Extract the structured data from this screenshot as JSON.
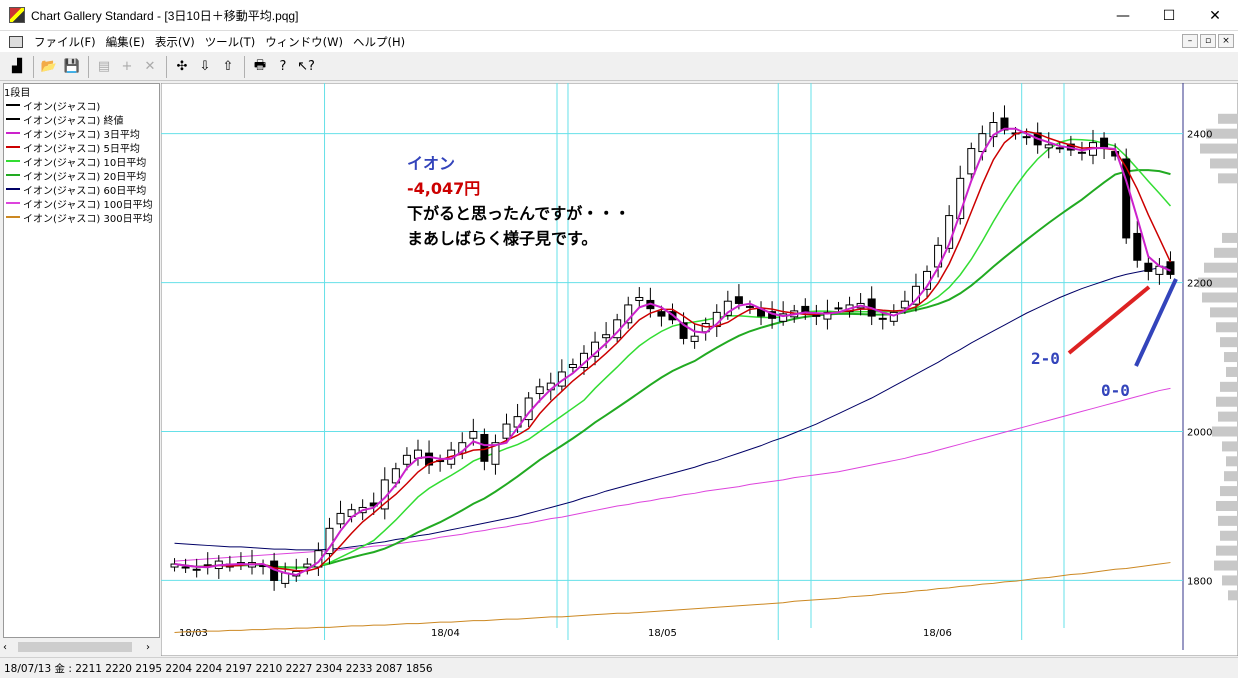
{
  "window": {
    "title": "Chart Gallery Standard - [3日10日＋移動平均.pqg]",
    "minimize": "—",
    "maximize": "☐",
    "close": "✕"
  },
  "menu": [
    "ファイル(F)",
    "編集(E)",
    "表示(V)",
    "ツール(T)",
    "ウィンドウ(W)",
    "ヘルプ(H)"
  ],
  "mdi_controls": [
    "–",
    "▫",
    "×"
  ],
  "toolbar": {
    "buttons": [
      {
        "name": "chart-type-icon",
        "glyph": "▟",
        "enabled": true
      },
      {
        "name": "open-folder-icon",
        "glyph": "📂",
        "enabled": true
      },
      {
        "name": "save-icon",
        "glyph": "💾",
        "enabled": true
      },
      {
        "name": "properties-icon",
        "glyph": "▤",
        "enabled": false
      },
      {
        "name": "add-icon",
        "glyph": "+",
        "enabled": false
      },
      {
        "name": "delete-icon",
        "glyph": "✕",
        "enabled": false
      },
      {
        "name": "crosshair-icon",
        "glyph": "✣",
        "enabled": true
      },
      {
        "name": "arrow-down-icon",
        "glyph": "⇩",
        "enabled": true
      },
      {
        "name": "arrow-up-icon",
        "glyph": "⇧",
        "enabled": true
      },
      {
        "name": "print-icon",
        "glyph": "🖶",
        "enabled": true
      },
      {
        "name": "help-icon",
        "glyph": "?",
        "enabled": true
      },
      {
        "name": "context-help-icon",
        "glyph": "↖?",
        "enabled": true
      }
    ]
  },
  "legend": {
    "header": "1段目",
    "items": [
      {
        "label": "イオン(ジャスコ)",
        "color": "#000000"
      },
      {
        "label": "イオン(ジャスコ) 終値",
        "color": "#000000"
      },
      {
        "label": "イオン(ジャスコ) 3日平均",
        "color": "#cc22cc"
      },
      {
        "label": "イオン(ジャスコ) 5日平均",
        "color": "#cc0000"
      },
      {
        "label": "イオン(ジャスコ) 10日平均",
        "color": "#33dd33"
      },
      {
        "label": "イオン(ジャスコ) 20日平均",
        "color": "#22aa22"
      },
      {
        "label": "イオン(ジャスコ) 60日平均",
        "color": "#000066"
      },
      {
        "label": "イオン(ジャスコ) 100日平均",
        "color": "#dd44dd"
      },
      {
        "label": "イオン(ジャスコ) 300日平均",
        "color": "#cc8822"
      }
    ]
  },
  "annotations": {
    "name": "イオン",
    "change": "-4,047円",
    "line1": "下がると思ったんですが・・・",
    "line2": "まあしばらく様子見です。",
    "marker_a": "2-0",
    "marker_b": "0-0"
  },
  "status": "18/07/13 金 : 2211 2220 2195 2204 2204 2197 2210 2227 2304 2233 2087 1856",
  "chart_data": {
    "type": "candlestick",
    "y_ticks": [
      1800,
      2000,
      2200,
      2400
    ],
    "ylim": [
      1720,
      2460
    ],
    "x_labels": [
      "18/03",
      "18/04",
      "18/05",
      "18/06"
    ],
    "x_label_days": [
      0,
      22,
      41,
      63
    ],
    "num_days": 91,
    "grid": true,
    "colors": {
      "ma3": "#cc22cc",
      "ma5": "#cc0000",
      "ma10": "#33dd33",
      "ma20": "#22aa22",
      "ma60": "#000066",
      "ma100": "#dd44dd",
      "ma300": "#cc8822",
      "grid": "#66e0e8",
      "marker_red": "#dd2222",
      "marker_blue": "#3344bb"
    },
    "closes": [
      1822,
      1818,
      1815,
      1820,
      1826,
      1818,
      1822,
      1824,
      1820,
      1800,
      1810,
      1812,
      1822,
      1840,
      1870,
      1890,
      1895,
      1898,
      1900,
      1935,
      1950,
      1968,
      1975,
      1955,
      1960,
      1975,
      1985,
      2000,
      1960,
      1985,
      2010,
      2020,
      2045,
      2060,
      2065,
      2080,
      2090,
      2105,
      2120,
      2130,
      2150,
      2170,
      2180,
      2165,
      2155,
      2150,
      2125,
      2128,
      2145,
      2160,
      2175,
      2172,
      2168,
      2155,
      2152,
      2158,
      2162,
      2160,
      2155,
      2160,
      2165,
      2170,
      2172,
      2155,
      2152,
      2160,
      2175,
      2195,
      2215,
      2250,
      2290,
      2340,
      2380,
      2400,
      2415,
      2405,
      2400,
      2395,
      2385,
      2385,
      2380,
      2378,
      2375,
      2388,
      2380,
      2370,
      2260,
      2230,
      2215,
      2222,
      2211
    ],
    "ma60": [
      1850,
      1849,
      1848,
      1847,
      1846,
      1845,
      1845,
      1844,
      1843,
      1842,
      1842,
      1841,
      1841,
      1841,
      1842,
      1843,
      1845,
      1847,
      1850,
      1852,
      1855,
      1857,
      1860,
      1862,
      1865,
      1868,
      1871,
      1874,
      1877,
      1880,
      1883,
      1886,
      1890,
      1894,
      1898,
      1902,
      1906,
      1911,
      1915,
      1920,
      1924,
      1928,
      1932,
      1936,
      1940,
      1944,
      1948,
      1952,
      1957,
      1961,
      1966,
      1971,
      1976,
      1981,
      1987,
      1992,
      1998,
      2004,
      2010,
      2017,
      2024,
      2031,
      2038,
      2045,
      2053,
      2061,
      2069,
      2077,
      2085,
      2093,
      2102,
      2110,
      2119,
      2127,
      2135,
      2143,
      2151,
      2159,
      2166,
      2173,
      2180,
      2186,
      2192,
      2197,
      2202,
      2207,
      2211,
      2214,
      2217,
      2220,
      2222
    ],
    "ma100": [
      1826,
      1827,
      1828,
      1829,
      1830,
      1831,
      1832,
      1833,
      1834,
      1835,
      1836,
      1837,
      1838,
      1839,
      1840,
      1841,
      1843,
      1844,
      1846,
      1847,
      1849,
      1851,
      1853,
      1855,
      1858,
      1860,
      1862,
      1865,
      1867,
      1870,
      1872,
      1875,
      1877,
      1880,
      1883,
      1885,
      1888,
      1891,
      1894,
      1897,
      1900,
      1902,
      1905,
      1907,
      1910,
      1912,
      1915,
      1917,
      1920,
      1922,
      1924,
      1926,
      1929,
      1931,
      1933,
      1935,
      1938,
      1940,
      1942,
      1944,
      1946,
      1949,
      1952,
      1955,
      1958,
      1961,
      1964,
      1968,
      1971,
      1975,
      1979,
      1983,
      1987,
      1991,
      1995,
      1999,
      2003,
      2007,
      2011,
      2015,
      2019,
      2023,
      2027,
      2031,
      2035,
      2039,
      2043,
      2047,
      2051,
      2055,
      2058
    ],
    "ma300": [
      1730,
      1731,
      1731,
      1732,
      1732,
      1733,
      1733,
      1734,
      1734,
      1735,
      1735,
      1736,
      1736,
      1737,
      1737,
      1738,
      1739,
      1739,
      1740,
      1740,
      1741,
      1742,
      1742,
      1743,
      1744,
      1744,
      1745,
      1746,
      1746,
      1747,
      1748,
      1748,
      1749,
      1750,
      1751,
      1751,
      1752,
      1753,
      1754,
      1755,
      1756,
      1756,
      1757,
      1758,
      1759,
      1760,
      1761,
      1762,
      1763,
      1764,
      1765,
      1766,
      1767,
      1768,
      1769,
      1770,
      1772,
      1773,
      1774,
      1775,
      1776,
      1778,
      1779,
      1780,
      1782,
      1783,
      1784,
      1786,
      1787,
      1789,
      1790,
      1792,
      1793,
      1795,
      1796,
      1798,
      1799,
      1801,
      1803,
      1804,
      1806,
      1808,
      1809,
      1811,
      1813,
      1815,
      1816,
      1818,
      1820,
      1822,
      1824
    ],
    "volume_profile": [
      [
        2420,
        20
      ],
      [
        2400,
        32
      ],
      [
        2380,
        38
      ],
      [
        2360,
        28
      ],
      [
        2340,
        20
      ],
      [
        2260,
        16
      ],
      [
        2240,
        24
      ],
      [
        2220,
        34
      ],
      [
        2200,
        40
      ],
      [
        2180,
        36
      ],
      [
        2160,
        28
      ],
      [
        2140,
        22
      ],
      [
        2120,
        18
      ],
      [
        2100,
        14
      ],
      [
        2080,
        12
      ],
      [
        2060,
        18
      ],
      [
        2040,
        22
      ],
      [
        2020,
        20
      ],
      [
        2000,
        26
      ],
      [
        1980,
        16
      ],
      [
        1960,
        12
      ],
      [
        1940,
        14
      ],
      [
        1920,
        18
      ],
      [
        1900,
        22
      ],
      [
        1880,
        20
      ],
      [
        1860,
        18
      ],
      [
        1840,
        22
      ],
      [
        1820,
        24
      ],
      [
        1800,
        16
      ],
      [
        1780,
        10
      ]
    ]
  }
}
